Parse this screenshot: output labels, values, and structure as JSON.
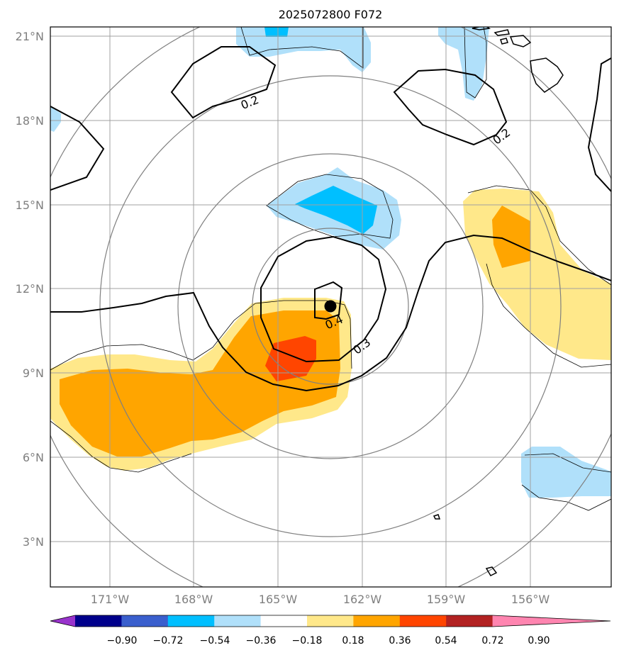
{
  "title": "2025072800 F072",
  "map": {
    "lon_labels": [
      "171°W",
      "168°W",
      "165°W",
      "162°W",
      "159°W",
      "156°W"
    ],
    "lat_labels": [
      "21°N",
      "18°N",
      "15°N",
      "12°N",
      "9°N",
      "6°N",
      "3°N"
    ],
    "lon_range": [
      "173°W",
      "153°W"
    ],
    "lat_range": [
      "1.5°N",
      "21.3°N"
    ],
    "grid": true,
    "storm_center": {
      "lon": "163.1°W",
      "lat": "11.4°N"
    }
  },
  "contour_labels": [
    "0.2",
    "0.2",
    "0.3",
    "0.4"
  ],
  "colorbar": {
    "labels": [
      "−0.90",
      "−0.72",
      "−0.54",
      "−0.36",
      "−0.18",
      "0.18",
      "0.36",
      "0.54",
      "0.72",
      "0.90"
    ],
    "colors": [
      "#9933cc",
      "#00008b",
      "#3a5fcd",
      "#00bfff",
      "#b0e0fa",
      "#ffffff",
      "#ffe88a",
      "#ffa500",
      "#ff4500",
      "#b22222",
      "#ff85b0"
    ],
    "extend": "both"
  },
  "colors": {
    "frame": "#000000",
    "grid": "#a0a0a0",
    "ring": "#808080",
    "coast": "#000000"
  }
}
